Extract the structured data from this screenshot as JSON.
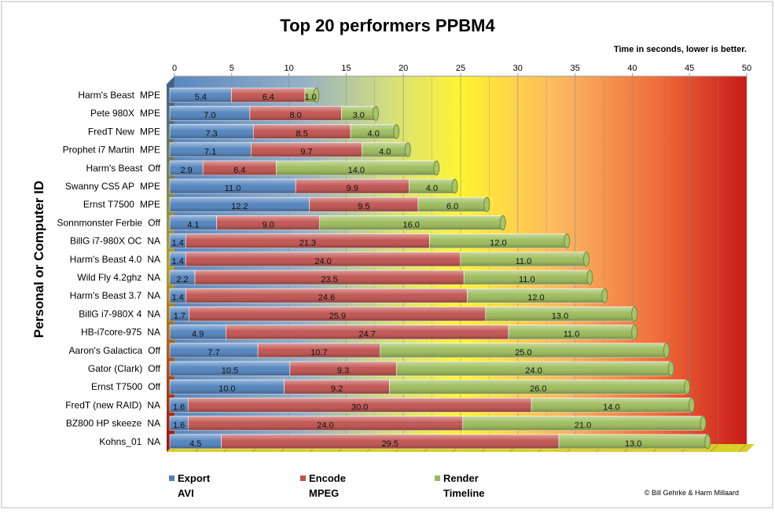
{
  "chart_data": {
    "type": "bar",
    "orientation": "horizontal",
    "stacked": true,
    "title": "Top 20 performers PPBM4",
    "subtitle": "Time in seconds, lower is better.",
    "ylabel": "Personal or Computer ID",
    "xlabel": "",
    "xlim": [
      0,
      50
    ],
    "xticks": [
      0,
      5,
      10,
      15,
      20,
      25,
      30,
      35,
      40,
      45,
      50
    ],
    "grid": true,
    "legend_position": "bottom",
    "categories": [
      {
        "name": "Harm's Beast",
        "tag": "MPE"
      },
      {
        "name": "Pete 980X",
        "tag": "MPE"
      },
      {
        "name": "FredT New",
        "tag": "MPE"
      },
      {
        "name": "Prophet i7 Martin",
        "tag": "MPE"
      },
      {
        "name": "Harm's Beast",
        "tag": "Off"
      },
      {
        "name": "Swanny CS5 AP",
        "tag": "MPE"
      },
      {
        "name": "Ernst T7500",
        "tag": "MPE"
      },
      {
        "name": "Sonnmonster Ferbie",
        "tag": "Off"
      },
      {
        "name": "BillG i7-980X OC",
        "tag": "NA"
      },
      {
        "name": "Harm's Beast 4.0",
        "tag": "NA"
      },
      {
        "name": "Wild Fly 4.2ghz",
        "tag": "NA"
      },
      {
        "name": "Harm's Beast 3.7",
        "tag": "NA"
      },
      {
        "name": "BillG i7-980X 4",
        "tag": "NA"
      },
      {
        "name": "HB-i7core-975",
        "tag": "NA"
      },
      {
        "name": "Aaron's Galactica",
        "tag": "Off"
      },
      {
        "name": "Gator (Clark)",
        "tag": "Off"
      },
      {
        "name": "Ernst T7500",
        "tag": "Off"
      },
      {
        "name": "FredT (new RAID)",
        "tag": "NA"
      },
      {
        "name": "BZ800 HP skeeze",
        "tag": "NA"
      },
      {
        "name": "Kohns_01",
        "tag": "NA"
      }
    ],
    "series": [
      {
        "name": "Export",
        "sub": "AVI",
        "color": "#4f81bd",
        "values": [
          5.4,
          7.0,
          7.3,
          7.1,
          2.9,
          11.0,
          12.2,
          4.1,
          1.4,
          1.4,
          2.2,
          1.4,
          1.7,
          4.9,
          7.7,
          10.5,
          10.0,
          1.6,
          1.6,
          4.5
        ]
      },
      {
        "name": "Encode",
        "sub": "MPEG",
        "color": "#c0504d",
        "values": [
          6.4,
          8.0,
          8.5,
          9.7,
          6.4,
          9.9,
          9.5,
          9.0,
          21.3,
          24.0,
          23.5,
          24.6,
          25.9,
          24.7,
          10.7,
          9.3,
          9.2,
          30.0,
          24.0,
          29.5
        ]
      },
      {
        "name": "Render",
        "sub": "Timeline",
        "color": "#9bbb59",
        "values": [
          1.0,
          3.0,
          4.0,
          4.0,
          14.0,
          4.0,
          6.0,
          16.0,
          12.0,
          11.0,
          11.0,
          12.0,
          13.0,
          11.0,
          25.0,
          24.0,
          26.0,
          14.0,
          21.0,
          13.0
        ]
      }
    ]
  },
  "credit": "© Bill Gehrke & Harm Millaard"
}
